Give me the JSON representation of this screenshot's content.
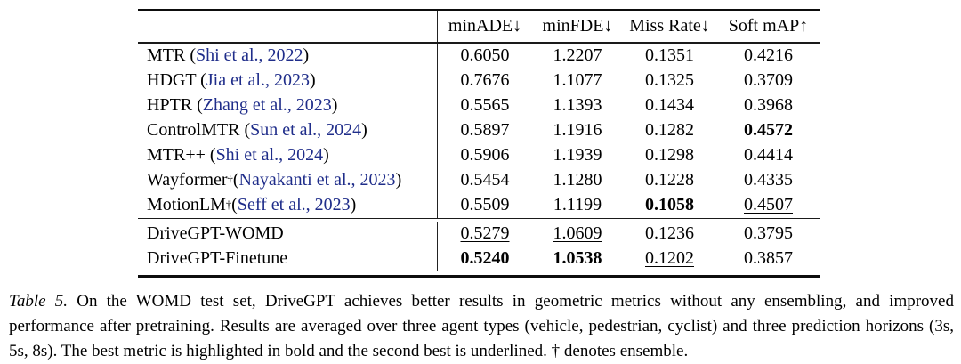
{
  "colors": {
    "citation_link": "#1f2d8a",
    "text": "#000000",
    "rule": "#0d0d0d"
  },
  "table": {
    "columns": [
      "minADE↓",
      "minFDE↓",
      "Miss Rate↓",
      "Soft mAP↑"
    ],
    "sections": [
      {
        "rows": [
          {
            "method": [
              {
                "t": "MTR ("
              },
              {
                "t": "Shi et al., 2022",
                "s": "cite"
              },
              {
                "t": ")"
              }
            ],
            "cells": [
              {
                "v": "0.6050"
              },
              {
                "v": "1.2207"
              },
              {
                "v": "0.1351"
              },
              {
                "v": "0.4216"
              }
            ]
          },
          {
            "method": [
              {
                "t": "HDGT ("
              },
              {
                "t": "Jia et al., 2023",
                "s": "cite"
              },
              {
                "t": ")"
              }
            ],
            "cells": [
              {
                "v": "0.7676"
              },
              {
                "v": "1.1077"
              },
              {
                "v": "0.1325"
              },
              {
                "v": "0.3709"
              }
            ]
          },
          {
            "method": [
              {
                "t": "HPTR ("
              },
              {
                "t": "Zhang et al., 2023",
                "s": "cite"
              },
              {
                "t": ")"
              }
            ],
            "cells": [
              {
                "v": "0.5565"
              },
              {
                "v": "1.1393"
              },
              {
                "v": "0.1434"
              },
              {
                "v": "0.3968"
              }
            ]
          },
          {
            "method": [
              {
                "t": "ControlMTR ("
              },
              {
                "t": "Sun et al., 2024",
                "s": "cite"
              },
              {
                "t": ")"
              }
            ],
            "cells": [
              {
                "v": "0.5897"
              },
              {
                "v": "1.1916"
              },
              {
                "v": "0.1282"
              },
              {
                "v": "0.4572",
                "s": "bold"
              }
            ]
          },
          {
            "method": [
              {
                "t": "MTR++ ("
              },
              {
                "t": "Shi et al., 2024",
                "s": "cite"
              },
              {
                "t": ")"
              }
            ],
            "cells": [
              {
                "v": "0.5906"
              },
              {
                "v": "1.1939"
              },
              {
                "v": "0.1298"
              },
              {
                "v": "0.4414"
              }
            ]
          },
          {
            "method": [
              {
                "t": "Wayformer"
              },
              {
                "t": "†",
                "s": "sup"
              },
              {
                "t": " ("
              },
              {
                "t": "Nayakanti et al., 2023",
                "s": "cite"
              },
              {
                "t": ")"
              }
            ],
            "cells": [
              {
                "v": "0.5454"
              },
              {
                "v": "1.1280"
              },
              {
                "v": "0.1228"
              },
              {
                "v": "0.4335"
              }
            ]
          },
          {
            "method": [
              {
                "t": "MotionLM"
              },
              {
                "t": "†",
                "s": "sup"
              },
              {
                "t": " ("
              },
              {
                "t": "Seff et al., 2023",
                "s": "cite"
              },
              {
                "t": ")"
              }
            ],
            "cells": [
              {
                "v": "0.5509"
              },
              {
                "v": "1.1199"
              },
              {
                "v": "0.1058",
                "s": "bold"
              },
              {
                "v": "0.4507",
                "s": "underline"
              }
            ]
          }
        ]
      },
      {
        "rows": [
          {
            "method": [
              {
                "t": "DriveGPT-WOMD"
              }
            ],
            "cells": [
              {
                "v": "0.5279",
                "s": "underline"
              },
              {
                "v": "1.0609",
                "s": "underline"
              },
              {
                "v": "0.1236"
              },
              {
                "v": "0.3795"
              }
            ]
          },
          {
            "method": [
              {
                "t": "DriveGPT-Finetune"
              }
            ],
            "cells": [
              {
                "v": "0.5240",
                "s": "bold"
              },
              {
                "v": "1.0538",
                "s": "bold"
              },
              {
                "v": "0.1202",
                "s": "underline"
              },
              {
                "v": "0.3857"
              }
            ]
          }
        ]
      }
    ]
  },
  "caption": {
    "label": "Table 5.",
    "text": "On the WOMD test set, DriveGPT achieves better results in geometric metrics without any ensembling, and improved performance after pretraining. Results are averaged over three agent types (vehicle, pedestrian, cyclist) and three prediction horizons (3s, 5s, 8s). The best metric is highlighted in bold and the second best is underlined. † denotes ensemble."
  }
}
